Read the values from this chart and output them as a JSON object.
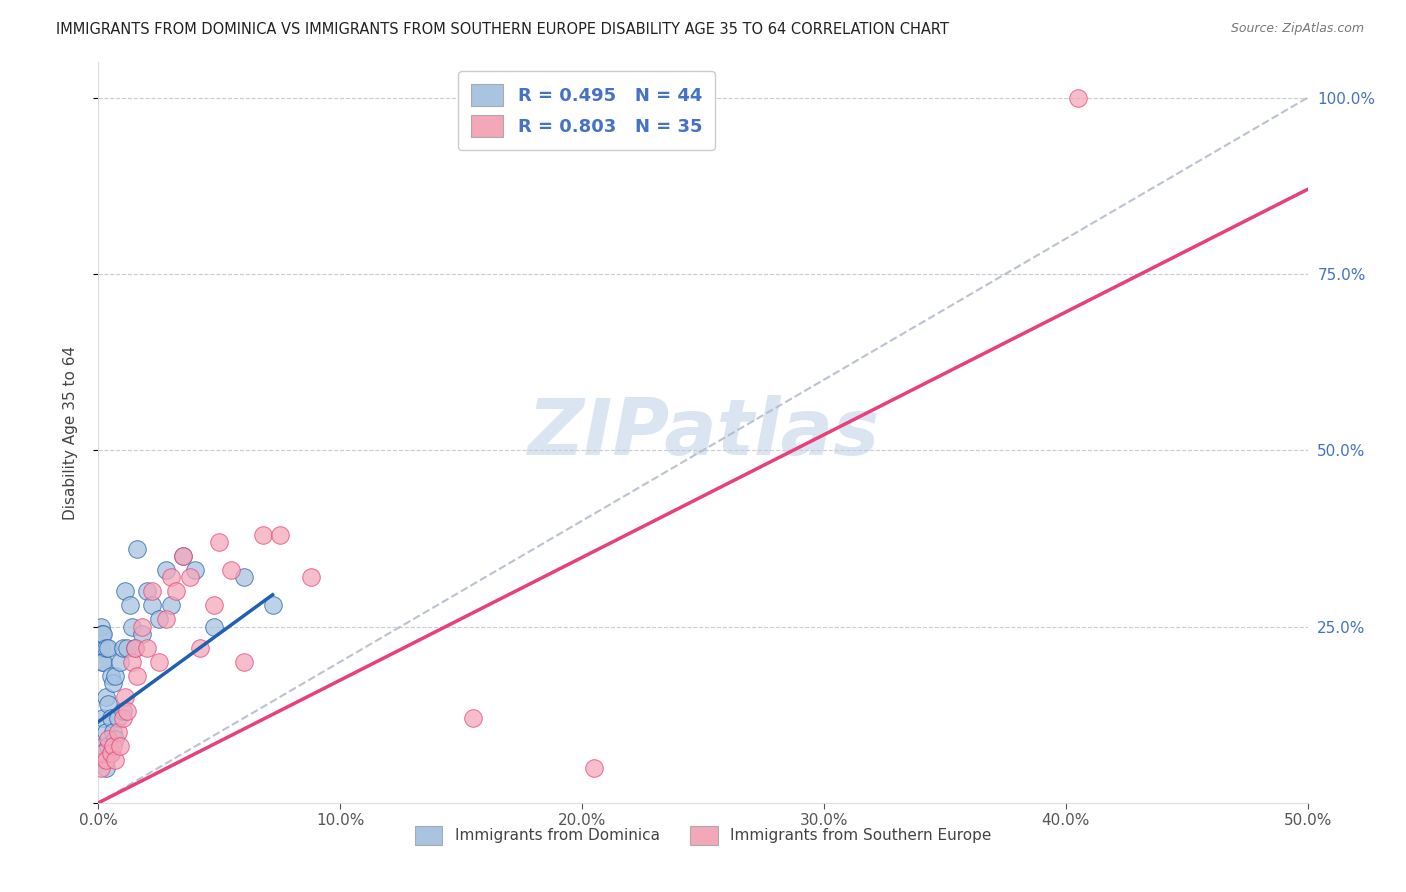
{
  "title": "IMMIGRANTS FROM DOMINICA VS IMMIGRANTS FROM SOUTHERN EUROPE DISABILITY AGE 35 TO 64 CORRELATION CHART",
  "source": "Source: ZipAtlas.com",
  "xlabel_label": "Immigrants from Dominica",
  "ylabel_label": "Disability Age 35 to 64",
  "right_axis_label": "Immigrants from Southern Europe",
  "xlim": [
    0,
    0.5
  ],
  "ylim": [
    0,
    1.05
  ],
  "xtick_vals": [
    0.0,
    0.1,
    0.2,
    0.3,
    0.4,
    0.5
  ],
  "xtick_labels": [
    "0.0%",
    "10.0%",
    "20.0%",
    "30.0%",
    "40.0%",
    "50.0%"
  ],
  "ytick_vals": [
    0.0,
    0.25,
    0.5,
    0.75,
    1.0
  ],
  "ytick_labels": [
    "",
    "25.0%",
    "50.0%",
    "75.0%",
    "100.0%"
  ],
  "color_blue": "#a8c4e0",
  "color_pink": "#f4a7b9",
  "line_blue": "#2060b0",
  "line_pink": "#e8407a",
  "line_diag": "#b0b8c8",
  "R_blue": 0.495,
  "N_blue": 44,
  "R_pink": 0.803,
  "N_pink": 35,
  "watermark": "ZIPatlas",
  "blue_dots_x": [
    0.0005,
    0.001,
    0.001,
    0.0015,
    0.0015,
    0.002,
    0.002,
    0.002,
    0.002,
    0.003,
    0.003,
    0.003,
    0.003,
    0.004,
    0.004,
    0.004,
    0.005,
    0.005,
    0.005,
    0.006,
    0.006,
    0.007,
    0.007,
    0.008,
    0.009,
    0.01,
    0.01,
    0.011,
    0.012,
    0.013,
    0.014,
    0.015,
    0.016,
    0.018,
    0.02,
    0.022,
    0.025,
    0.028,
    0.03,
    0.035,
    0.04,
    0.048,
    0.06,
    0.072
  ],
  "blue_dots_y": [
    0.06,
    0.22,
    0.25,
    0.2,
    0.24,
    0.08,
    0.12,
    0.2,
    0.24,
    0.05,
    0.1,
    0.15,
    0.22,
    0.08,
    0.14,
    0.22,
    0.07,
    0.12,
    0.18,
    0.1,
    0.17,
    0.09,
    0.18,
    0.12,
    0.2,
    0.13,
    0.22,
    0.3,
    0.22,
    0.28,
    0.25,
    0.22,
    0.36,
    0.24,
    0.3,
    0.28,
    0.26,
    0.33,
    0.28,
    0.35,
    0.33,
    0.25,
    0.32,
    0.28
  ],
  "pink_dots_x": [
    0.001,
    0.002,
    0.003,
    0.004,
    0.005,
    0.006,
    0.007,
    0.008,
    0.009,
    0.01,
    0.011,
    0.012,
    0.014,
    0.015,
    0.016,
    0.018,
    0.02,
    0.022,
    0.025,
    0.028,
    0.03,
    0.032,
    0.035,
    0.038,
    0.042,
    0.048,
    0.05,
    0.055,
    0.06,
    0.068,
    0.075,
    0.088,
    0.155,
    0.205,
    0.405
  ],
  "pink_dots_y": [
    0.05,
    0.07,
    0.06,
    0.09,
    0.07,
    0.08,
    0.06,
    0.1,
    0.08,
    0.12,
    0.15,
    0.13,
    0.2,
    0.22,
    0.18,
    0.25,
    0.22,
    0.3,
    0.2,
    0.26,
    0.32,
    0.3,
    0.35,
    0.32,
    0.22,
    0.28,
    0.37,
    0.33,
    0.2,
    0.38,
    0.38,
    0.32,
    0.12,
    0.05,
    1.0
  ],
  "blue_line_x0": 0.0,
  "blue_line_y0": 0.115,
  "blue_line_x1": 0.072,
  "blue_line_y1": 0.295,
  "pink_line_x0": 0.0,
  "pink_line_y0": 0.0,
  "pink_line_x1": 0.5,
  "pink_line_y1": 0.87
}
